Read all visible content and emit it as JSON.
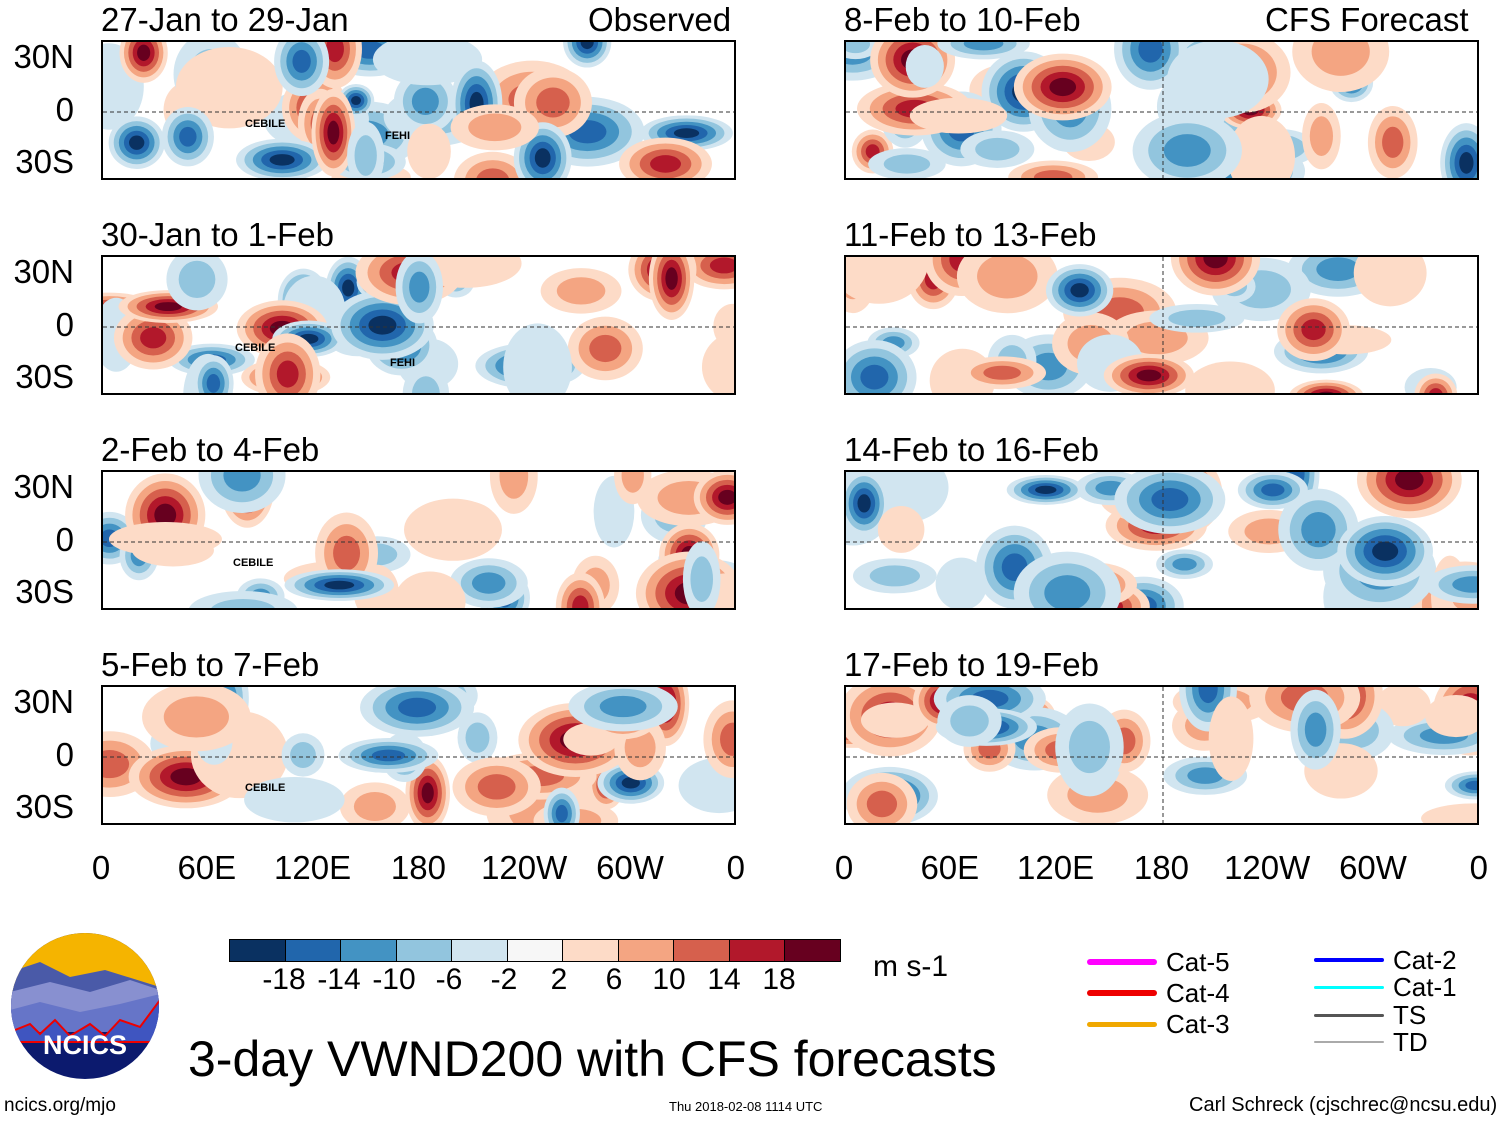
{
  "figure_title": "3-day VWND200 with CFS forecasts",
  "left_column_label": "Observed",
  "right_column_label": "CFS Forecast",
  "latitude_labels": [
    "30N",
    "0",
    "30S"
  ],
  "longitude_labels": [
    "0",
    "60E",
    "120E",
    "180",
    "120W",
    "60W",
    "0"
  ],
  "panels_observed": [
    {
      "title": "27-Jan to 29-Jan",
      "storms": [
        "CEBILE",
        "FEHI"
      ]
    },
    {
      "title": "30-Jan to 1-Feb",
      "storms": [
        "CEBILE",
        "FEHI"
      ]
    },
    {
      "title": "2-Feb to 4-Feb",
      "storms": [
        "CEBILE"
      ]
    },
    {
      "title": "5-Feb to 7-Feb",
      "storms": [
        "CEBILE"
      ]
    }
  ],
  "panels_forecast": [
    {
      "title": "8-Feb to 10-Feb"
    },
    {
      "title": "11-Feb to 13-Feb"
    },
    {
      "title": "14-Feb to 16-Feb"
    },
    {
      "title": "17-Feb to 19-Feb"
    }
  ],
  "colorbar": {
    "units": "m s-1",
    "ticks": [
      "-18",
      "-14",
      "-10",
      "-6",
      "-2",
      "2",
      "6",
      "10",
      "14",
      "18"
    ],
    "colors": [
      "#0a3161",
      "#2166ac",
      "#4393c3",
      "#92c5de",
      "#d1e5f0",
      "#f7f7f7",
      "#fddbc7",
      "#f4a582",
      "#d6604d",
      "#b2182b",
      "#67001f"
    ]
  },
  "storm_legend": [
    {
      "label": "Cat-5",
      "color": "#ff00ff"
    },
    {
      "label": "Cat-4",
      "color": "#ee0000"
    },
    {
      "label": "Cat-3",
      "color": "#f0a800"
    },
    {
      "label": "Cat-2",
      "color": "#0000ff"
    },
    {
      "label": "Cat-1",
      "color": "#00ffff"
    },
    {
      "label": "TS",
      "color": "#555555"
    },
    {
      "label": "TD",
      "color": "#aaaaaa"
    }
  ],
  "logo_text": "NCICS",
  "footer": {
    "url": "ncics.org/mjo",
    "timestamp": "Thu 2018-02-08 1114 UTC",
    "credit": "Carl Schreck (cjschrec@ncsu.edu)"
  }
}
